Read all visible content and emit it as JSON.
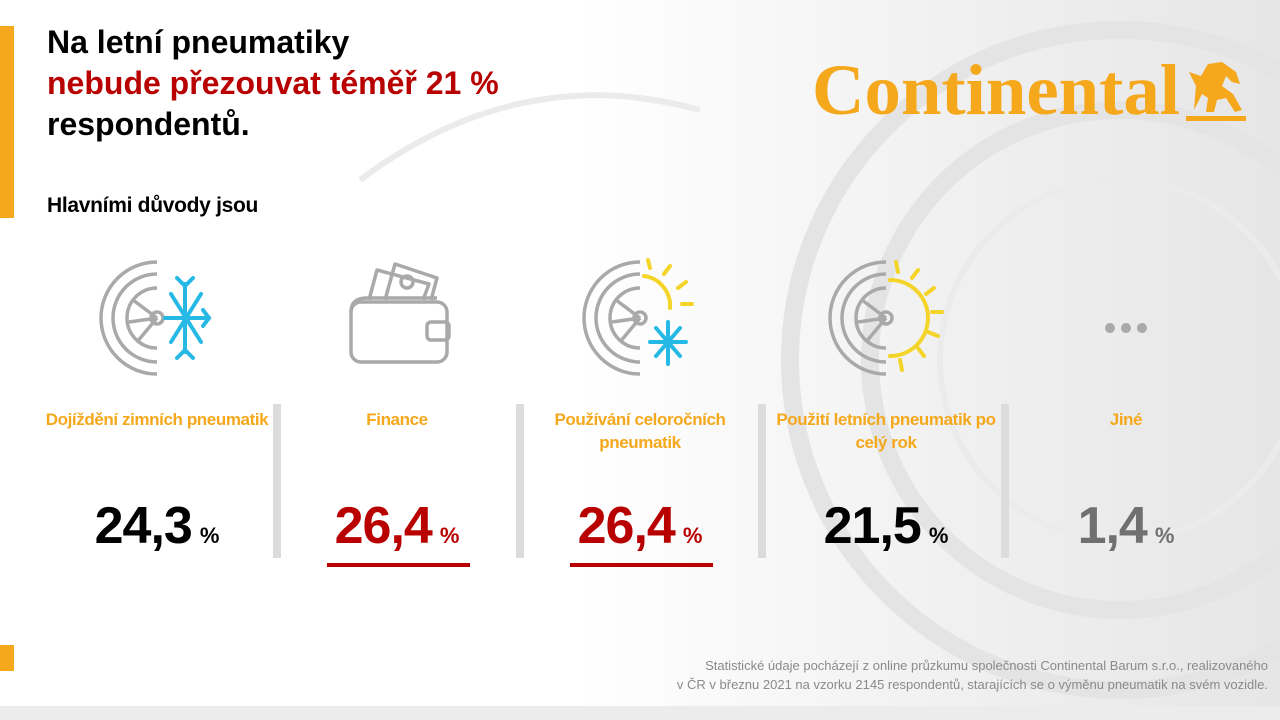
{
  "header": {
    "title_line1": "Na letní pneumatiky",
    "title_line2": "nebude přezouvat téměř 21 %",
    "title_line3": "respondentů.",
    "subtitle": "Hlavními důvody jsou"
  },
  "brand": {
    "logo_text": "Continental"
  },
  "colors": {
    "accent": "#f5a81c",
    "red": "#b80000",
    "black": "#000000",
    "grey": "#707070"
  },
  "chart_data": {
    "type": "table",
    "unit": "%",
    "categories": [
      "Dojíždění zimních pneumatik",
      "Finance",
      "Používání celoročních pneumatik",
      "Použití letních pneumatik po celý rok",
      "Jiné"
    ],
    "values": [
      24.3,
      26.4,
      26.4,
      21.5,
      1.4
    ]
  },
  "items": [
    {
      "label": "Dojíždění zimních pneumatik",
      "value": "24,3",
      "unit": "%",
      "icon": "tire-snowflake-icon",
      "value_color": "#000000",
      "highlight": false
    },
    {
      "label": "Finance",
      "value": "26,4",
      "unit": "%",
      "icon": "wallet-icon",
      "value_color": "#b80000",
      "highlight": true
    },
    {
      "label": "Používání celoročních pneumatik",
      "value": "26,4",
      "unit": "%",
      "icon": "tire-sun-snowflake-icon",
      "value_color": "#b80000",
      "highlight": true
    },
    {
      "label": "Použití letních pneumatik po celý rok",
      "value": "21,5",
      "unit": "%",
      "icon": "tire-sun-icon",
      "value_color": "#000000",
      "highlight": false
    },
    {
      "label": "Jiné",
      "value": "1,4",
      "unit": "%",
      "icon": "ellipsis-icon",
      "value_color": "#707070",
      "highlight": false
    }
  ],
  "footnote": {
    "line1": "Statistické údaje pocházejí z online průzkumu společnosti Continental Barum s.r.o., realizovaného",
    "line2": "v ČR v březnu 2021 na vzorku 2145 respondentů, starajících se o výměnu pneumatik na svém vozidle."
  }
}
